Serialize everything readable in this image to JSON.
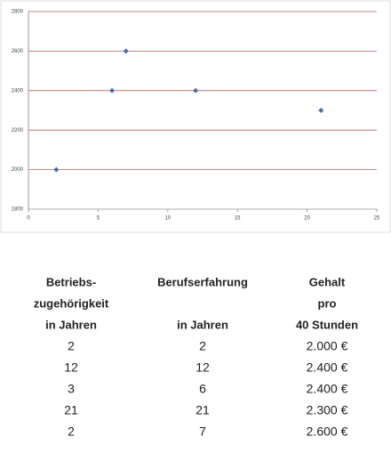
{
  "chart_data": {
    "type": "scatter",
    "x": [
      2,
      6,
      7,
      12,
      21
    ],
    "values": [
      2000,
      2400,
      2600,
      2400,
      2300
    ],
    "color": "#4a6fa5",
    "xlim": [
      0,
      25
    ],
    "xticks": [
      0,
      5,
      10,
      15,
      20,
      25
    ],
    "ylim": [
      1800,
      2800
    ],
    "yticks": [
      1800,
      2000,
      2200,
      2400,
      2600,
      2800
    ],
    "grid": true,
    "grid_color": "#b86060"
  },
  "table": {
    "header": [
      [
        "Betriebs-",
        "zugehörigkeit",
        "in Jahren"
      ],
      [
        "Berufserfahrung",
        "in Jahren"
      ],
      [
        "Gehalt",
        "pro",
        "40 Stunden"
      ]
    ],
    "rows": [
      [
        "2",
        "2",
        "2.000 €"
      ],
      [
        "12",
        "12",
        "2.400 €"
      ],
      [
        "3",
        "6",
        "2.400 €"
      ],
      [
        "21",
        "21",
        "2.300 €"
      ],
      [
        "2",
        "7",
        "2.600 €"
      ]
    ]
  }
}
